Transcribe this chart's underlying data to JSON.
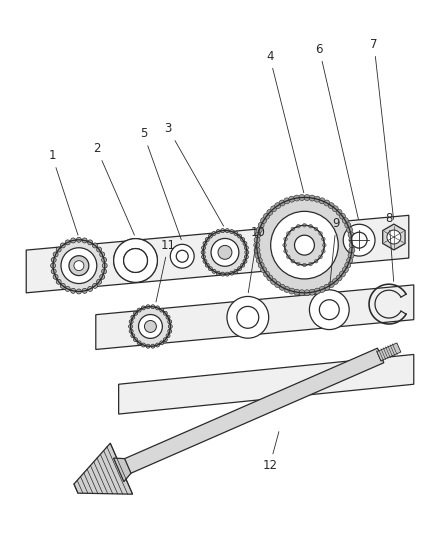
{
  "background_color": "#ffffff",
  "line_color": "#2a2a2a",
  "label_color": "#2a2a2a",
  "label_fontsize": 8.5,
  "fig_width": 4.39,
  "fig_height": 5.33,
  "dpi": 100
}
